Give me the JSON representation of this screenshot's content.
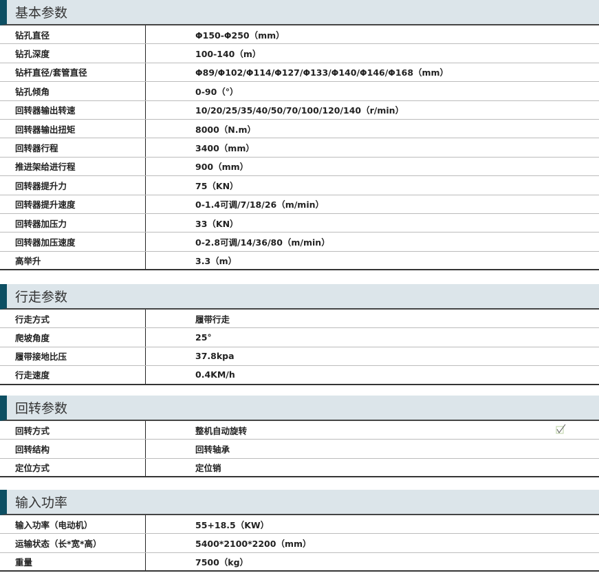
{
  "sections": [
    {
      "title": "基本参数",
      "rows": [
        [
          "钻孔直径",
          "Φ150-Φ250（mm）"
        ],
        [
          "钻孔深度",
          "100-140（m）"
        ],
        [
          "钻杆直径/套管直径",
          "Φ89/Φ102/Φ114/Φ127/Φ133/Φ140/Φ146/Φ168（mm）"
        ],
        [
          "钻孔倾角",
          "0-90（°）"
        ],
        [
          "回转器输出转速",
          "10/20/25/35/40/50/70/100/120/140（r/min）"
        ],
        [
          "回转器输出扭矩",
          "8000（N.m）"
        ],
        [
          "回转器行程",
          "3400（mm）"
        ],
        [
          "推进架给进行程",
          "900（mm）"
        ],
        [
          "回转器提升力",
          "75（KN）"
        ],
        [
          "回转器提升速度",
          "0-1.4可调/7/18/26（m/min）"
        ],
        [
          "回转器加压力",
          "33（KN）"
        ],
        [
          "回转器加压速度",
          "0-2.8可调/14/36/80（m/min）"
        ],
        [
          "高举升",
          "3.3（m）"
        ]
      ]
    },
    {
      "title": "行走参数",
      "rows": [
        [
          "行走方式",
          "履带行走"
        ],
        [
          "爬坡角度",
          "25°"
        ],
        [
          "履带接地比压",
          "37.8kpa"
        ],
        [
          "行走速度",
          "0.4KM/h"
        ]
      ]
    },
    {
      "title": "回转参数",
      "rows": [
        [
          "回转方式",
          "整机自动旋转"
        ],
        [
          "回转结构",
          "回转轴承"
        ],
        [
          "定位方式",
          "定位销"
        ]
      ]
    },
    {
      "title": "输入功率",
      "rows": [
        [
          "输入功率（电动机）",
          "55+18.5（KW）"
        ],
        [
          "运输状态（长*宽*高）",
          "5400*2100*2200（mm）"
        ],
        [
          "重量",
          "7500（kg）"
        ]
      ]
    }
  ],
  "colors": {
    "accent": "#0d4f63",
    "header_bg": "#dce5ea"
  },
  "icons": {
    "checkmark": "checkbox-check-icon"
  }
}
